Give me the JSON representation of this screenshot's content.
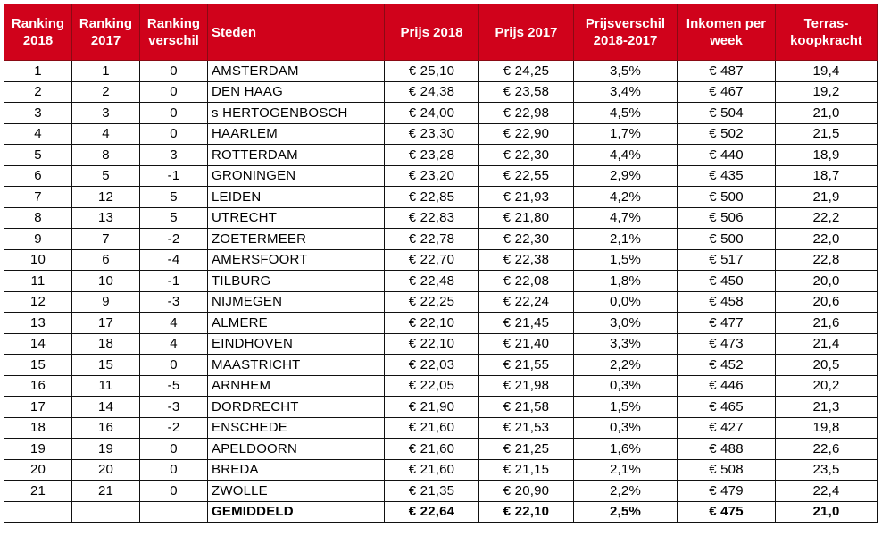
{
  "colors": {
    "header_bg": "#d0021b",
    "header_text": "#ffffff"
  },
  "table": {
    "headers": {
      "ranking_2018": [
        "Ranking",
        "2018"
      ],
      "ranking_2017": [
        "Ranking",
        "2017"
      ],
      "ranking_verschil": [
        "Ranking",
        "verschil"
      ],
      "steden": [
        "Steden"
      ],
      "prijs_2018": [
        "Prijs 2018"
      ],
      "prijs_2017": [
        "Prijs 2017"
      ],
      "prijsverschil": [
        "Prijsverschil",
        "2018-2017"
      ],
      "inkomen": [
        "Inkomen per",
        "week"
      ],
      "terras": [
        "Terras-",
        "koopkracht"
      ]
    },
    "rows": [
      {
        "r2018": "1",
        "r2017": "1",
        "diff": "0",
        "city": "AMSTERDAM",
        "p2018": "€ 25,10",
        "p2017": "€ 24,25",
        "pdiff": "3,5%",
        "income": "€ 487",
        "power": "19,4"
      },
      {
        "r2018": "2",
        "r2017": "2",
        "diff": "0",
        "city": "DEN HAAG",
        "p2018": "€ 24,38",
        "p2017": "€ 23,58",
        "pdiff": "3,4%",
        "income": "€ 467",
        "power": "19,2"
      },
      {
        "r2018": "3",
        "r2017": "3",
        "diff": "0",
        "city": "s HERTOGENBOSCH",
        "p2018": "€ 24,00",
        "p2017": "€ 22,98",
        "pdiff": "4,5%",
        "income": "€ 504",
        "power": "21,0"
      },
      {
        "r2018": "4",
        "r2017": "4",
        "diff": "0",
        "city": "HAARLEM",
        "p2018": "€ 23,30",
        "p2017": "€ 22,90",
        "pdiff": "1,7%",
        "income": "€ 502",
        "power": "21,5"
      },
      {
        "r2018": "5",
        "r2017": "8",
        "diff": "3",
        "city": "ROTTERDAM",
        "p2018": "€ 23,28",
        "p2017": "€ 22,30",
        "pdiff": "4,4%",
        "income": "€ 440",
        "power": "18,9"
      },
      {
        "r2018": "6",
        "r2017": "5",
        "diff": "-1",
        "city": "GRONINGEN",
        "p2018": "€ 23,20",
        "p2017": "€ 22,55",
        "pdiff": "2,9%",
        "income": "€ 435",
        "power": "18,7"
      },
      {
        "r2018": "7",
        "r2017": "12",
        "diff": "5",
        "city": "LEIDEN",
        "p2018": "€ 22,85",
        "p2017": "€ 21,93",
        "pdiff": "4,2%",
        "income": "€ 500",
        "power": "21,9"
      },
      {
        "r2018": "8",
        "r2017": "13",
        "diff": "5",
        "city": "UTRECHT",
        "p2018": "€ 22,83",
        "p2017": "€ 21,80",
        "pdiff": "4,7%",
        "income": "€ 506",
        "power": "22,2"
      },
      {
        "r2018": "9",
        "r2017": "7",
        "diff": "-2",
        "city": "ZOETERMEER",
        "p2018": "€ 22,78",
        "p2017": "€ 22,30",
        "pdiff": "2,1%",
        "income": "€ 500",
        "power": "22,0"
      },
      {
        "r2018": "10",
        "r2017": "6",
        "diff": "-4",
        "city": "AMERSFOORT",
        "p2018": "€ 22,70",
        "p2017": "€ 22,38",
        "pdiff": "1,5%",
        "income": "€ 517",
        "power": "22,8"
      },
      {
        "r2018": "11",
        "r2017": "10",
        "diff": "-1",
        "city": "TILBURG",
        "p2018": "€ 22,48",
        "p2017": "€ 22,08",
        "pdiff": "1,8%",
        "income": "€ 450",
        "power": "20,0"
      },
      {
        "r2018": "12",
        "r2017": "9",
        "diff": "-3",
        "city": "NIJMEGEN",
        "p2018": "€ 22,25",
        "p2017": "€ 22,24",
        "pdiff": "0,0%",
        "income": "€ 458",
        "power": "20,6"
      },
      {
        "r2018": "13",
        "r2017": "17",
        "diff": "4",
        "city": "ALMERE",
        "p2018": "€ 22,10",
        "p2017": "€ 21,45",
        "pdiff": "3,0%",
        "income": "€ 477",
        "power": "21,6"
      },
      {
        "r2018": "14",
        "r2017": "18",
        "diff": "4",
        "city": "EINDHOVEN",
        "p2018": "€ 22,10",
        "p2017": "€ 21,40",
        "pdiff": "3,3%",
        "income": "€ 473",
        "power": "21,4"
      },
      {
        "r2018": "15",
        "r2017": "15",
        "diff": "0",
        "city": "MAASTRICHT",
        "p2018": "€ 22,03",
        "p2017": "€ 21,55",
        "pdiff": "2,2%",
        "income": "€ 452",
        "power": "20,5"
      },
      {
        "r2018": "16",
        "r2017": "11",
        "diff": "-5",
        "city": "ARNHEM",
        "p2018": "€ 22,05",
        "p2017": "€ 21,98",
        "pdiff": "0,3%",
        "income": "€ 446",
        "power": "20,2"
      },
      {
        "r2018": "17",
        "r2017": "14",
        "diff": "-3",
        "city": "DORDRECHT",
        "p2018": "€ 21,90",
        "p2017": "€ 21,58",
        "pdiff": "1,5%",
        "income": "€ 465",
        "power": "21,3"
      },
      {
        "r2018": "18",
        "r2017": "16",
        "diff": "-2",
        "city": "ENSCHEDE",
        "p2018": "€ 21,60",
        "p2017": "€ 21,53",
        "pdiff": "0,3%",
        "income": "€ 427",
        "power": "19,8"
      },
      {
        "r2018": "19",
        "r2017": "19",
        "diff": "0",
        "city": "APELDOORN",
        "p2018": "€ 21,60",
        "p2017": "€ 21,25",
        "pdiff": "1,6%",
        "income": "€ 488",
        "power": "22,6"
      },
      {
        "r2018": "20",
        "r2017": "20",
        "diff": "0",
        "city": "BREDA",
        "p2018": "€ 21,60",
        "p2017": "€ 21,15",
        "pdiff": "2,1%",
        "income": "€ 508",
        "power": "23,5"
      },
      {
        "r2018": "21",
        "r2017": "21",
        "diff": "0",
        "city": "ZWOLLE",
        "p2018": "€ 21,35",
        "p2017": "€ 20,90",
        "pdiff": "2,2%",
        "income": "€ 479",
        "power": "22,4"
      }
    ],
    "total": {
      "r2018": "",
      "r2017": "",
      "diff": "",
      "city": "GEMIDDELD",
      "p2018": "€ 22,64",
      "p2017": "€ 22,10",
      "pdiff": "2,5%",
      "income": "€ 475",
      "power": "21,0"
    }
  }
}
